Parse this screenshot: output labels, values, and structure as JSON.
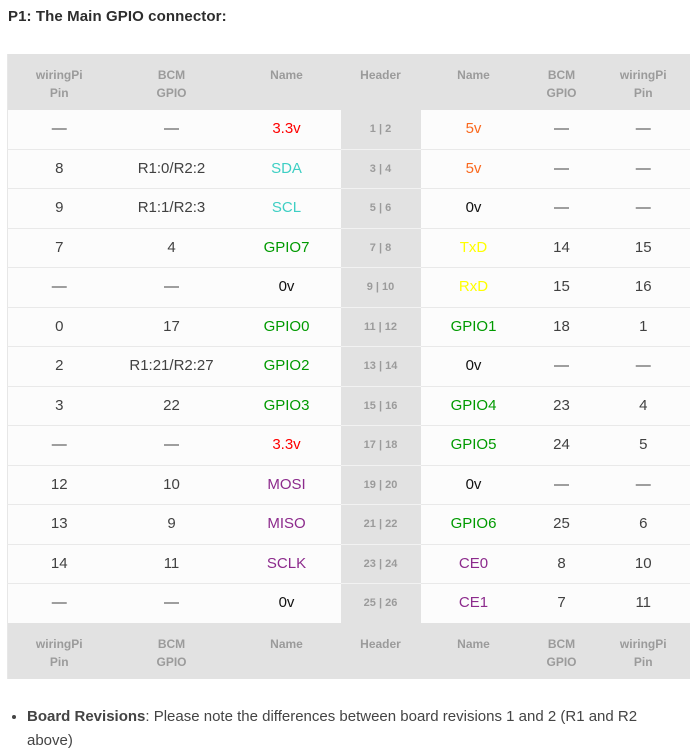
{
  "page": {
    "title": "P1: The Main GPIO connector:"
  },
  "colors": {
    "power33": "#fe0000",
    "power5": "#fa691e",
    "ground": "#111111",
    "gpio": "#009a00",
    "i2c": "#3ecfc4",
    "uart": "#ffff00",
    "spi": "#8c2a8c",
    "header_bg": "#e2e2e2",
    "header_text": "#9b9b9b"
  },
  "table": {
    "columns": [
      {
        "line1": "wiringPi",
        "line2": "Pin"
      },
      {
        "line1": "BCM",
        "line2": "GPIO"
      },
      {
        "line1": "Name",
        "line2": ""
      },
      {
        "line1": "Header",
        "line2": ""
      },
      {
        "line1": "Name",
        "line2": ""
      },
      {
        "line1": "BCM",
        "line2": "GPIO"
      },
      {
        "line1": "wiringPi",
        "line2": "Pin"
      }
    ],
    "rows": [
      {
        "wpi_l": "—",
        "bcm_l": "—",
        "name_l": "3.3v",
        "color_l": "power33",
        "header": "1 | 2",
        "name_r": "5v",
        "color_r": "power5",
        "bcm_r": "—",
        "wpi_r": "—"
      },
      {
        "wpi_l": "8",
        "bcm_l": "R1:0/R2:2",
        "name_l": "SDA",
        "color_l": "i2c",
        "header": "3 | 4",
        "name_r": "5v",
        "color_r": "power5",
        "bcm_r": "—",
        "wpi_r": "—"
      },
      {
        "wpi_l": "9",
        "bcm_l": "R1:1/R2:3",
        "name_l": "SCL",
        "color_l": "i2c",
        "header": "5 | 6",
        "name_r": "0v",
        "color_r": "ground",
        "bcm_r": "—",
        "wpi_r": "—"
      },
      {
        "wpi_l": "7",
        "bcm_l": "4",
        "name_l": "GPIO7",
        "color_l": "gpio",
        "header": "7 | 8",
        "name_r": "TxD",
        "color_r": "uart",
        "bcm_r": "14",
        "wpi_r": "15"
      },
      {
        "wpi_l": "—",
        "bcm_l": "—",
        "name_l": "0v",
        "color_l": "ground",
        "header": "9 | 10",
        "name_r": "RxD",
        "color_r": "uart",
        "bcm_r": "15",
        "wpi_r": "16"
      },
      {
        "wpi_l": "0",
        "bcm_l": "17",
        "name_l": "GPIO0",
        "color_l": "gpio",
        "header": "11 | 12",
        "name_r": "GPIO1",
        "color_r": "gpio",
        "bcm_r": "18",
        "wpi_r": "1"
      },
      {
        "wpi_l": "2",
        "bcm_l": "R1:21/R2:27",
        "name_l": "GPIO2",
        "color_l": "gpio",
        "header": "13 | 14",
        "name_r": "0v",
        "color_r": "ground",
        "bcm_r": "—",
        "wpi_r": "—"
      },
      {
        "wpi_l": "3",
        "bcm_l": "22",
        "name_l": "GPIO3",
        "color_l": "gpio",
        "header": "15 | 16",
        "name_r": "GPIO4",
        "color_r": "gpio",
        "bcm_r": "23",
        "wpi_r": "4"
      },
      {
        "wpi_l": "—",
        "bcm_l": "—",
        "name_l": "3.3v",
        "color_l": "power33",
        "header": "17 | 18",
        "name_r": "GPIO5",
        "color_r": "gpio",
        "bcm_r": "24",
        "wpi_r": "5"
      },
      {
        "wpi_l": "12",
        "bcm_l": "10",
        "name_l": "MOSI",
        "color_l": "spi",
        "header": "19 | 20",
        "name_r": "0v",
        "color_r": "ground",
        "bcm_r": "—",
        "wpi_r": "—"
      },
      {
        "wpi_l": "13",
        "bcm_l": "9",
        "name_l": "MISO",
        "color_l": "spi",
        "header": "21 | 22",
        "name_r": "GPIO6",
        "color_r": "gpio",
        "bcm_r": "25",
        "wpi_r": "6"
      },
      {
        "wpi_l": "14",
        "bcm_l": "11",
        "name_l": "SCLK",
        "color_l": "spi",
        "header": "23 | 24",
        "name_r": "CE0",
        "color_r": "spi",
        "bcm_r": "8",
        "wpi_r": "10"
      },
      {
        "wpi_l": "—",
        "bcm_l": "—",
        "name_l": "0v",
        "color_l": "ground",
        "header": "25 | 26",
        "name_r": "CE1",
        "color_r": "spi",
        "bcm_r": "7",
        "wpi_r": "11"
      }
    ]
  },
  "notes": [
    {
      "bold": "Board Revisions",
      "rest": ": Please note the differences between board revisions 1 and 2 (R1 and R2 above)"
    }
  ]
}
